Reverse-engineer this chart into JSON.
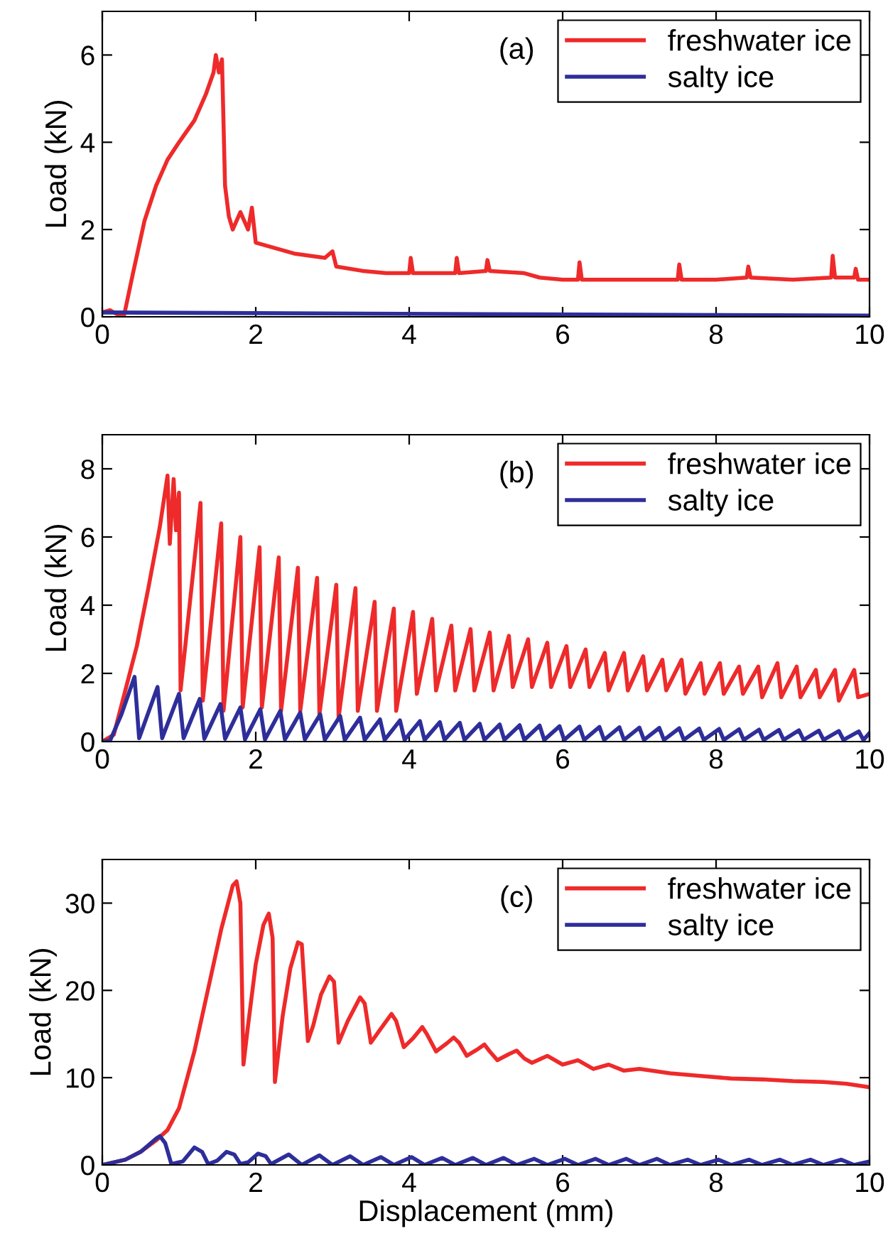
{
  "chart_data": [
    {
      "type": "line",
      "ylabel": "Load (kN)",
      "annotations": [
        "(a)"
      ],
      "xlim": [
        0,
        10
      ],
      "xticks": [
        0,
        2,
        4,
        6,
        8,
        10
      ],
      "ylim": [
        0,
        7
      ],
      "yticks": [
        0,
        2,
        4,
        6
      ],
      "legend": "top right",
      "grid": false,
      "line_style": "solid",
      "marker": "none",
      "series": [
        {
          "name": "freshwater ice",
          "color": "#ee2a2a",
          "x": [
            0,
            0.1,
            0.2,
            0.28,
            0.4,
            0.55,
            0.7,
            0.85,
            1.0,
            1.2,
            1.35,
            1.45,
            1.48,
            1.52,
            1.56,
            1.6,
            1.65,
            1.7,
            1.8,
            1.9,
            1.95,
            2.0,
            2.5,
            2.7,
            2.9,
            3.0,
            3.05,
            3.4,
            3.7,
            4.0,
            4.02,
            4.05,
            4.6,
            4.62,
            4.65,
            5.0,
            5.02,
            5.05,
            5.5,
            5.7,
            6.0,
            6.2,
            6.22,
            6.25,
            7.0,
            7.5,
            7.52,
            7.55,
            8.0,
            8.4,
            8.42,
            8.45,
            9.0,
            9.5,
            9.52,
            9.55,
            9.8,
            9.82,
            9.85,
            10
          ],
          "values": [
            0.1,
            0.15,
            0.05,
            0,
            1.0,
            2.2,
            3.0,
            3.6,
            4.0,
            4.5,
            5.1,
            5.6,
            6.0,
            5.6,
            5.9,
            3.0,
            2.3,
            2.0,
            2.4,
            2.0,
            2.5,
            1.7,
            1.45,
            1.4,
            1.35,
            1.5,
            1.15,
            1.05,
            1.0,
            1.0,
            1.35,
            1.0,
            1.0,
            1.35,
            1.0,
            1.05,
            1.3,
            1.05,
            1.0,
            0.9,
            0.85,
            0.85,
            1.25,
            0.85,
            0.85,
            0.85,
            1.2,
            0.85,
            0.85,
            0.9,
            1.15,
            0.9,
            0.85,
            0.9,
            1.4,
            0.9,
            0.9,
            1.1,
            0.85,
            0.85
          ]
        },
        {
          "name": "salty ice",
          "color": "#2e2e9a",
          "x": [
            0,
            5,
            10
          ],
          "values": [
            0.1,
            0.06,
            0.03
          ]
        }
      ]
    },
    {
      "type": "line",
      "ylabel": "Load (kN)",
      "annotations": [
        "(b)"
      ],
      "xlim": [
        0,
        10
      ],
      "xticks": [
        0,
        2,
        4,
        6,
        8,
        10
      ],
      "ylim": [
        0,
        9
      ],
      "yticks": [
        0,
        2,
        4,
        6,
        8
      ],
      "legend": "top right",
      "grid": false,
      "line_style": "solid",
      "marker": "none",
      "series": [
        {
          "name": "freshwater ice",
          "color": "#ee2a2a",
          "x": [
            0,
            0.15,
            0.3,
            0.45,
            0.6,
            0.75,
            0.85,
            0.88,
            0.93,
            0.96,
            1.0,
            1.02,
            1.28,
            1.31,
            1.55,
            1.58,
            1.8,
            1.83,
            2.05,
            2.08,
            2.3,
            2.33,
            2.55,
            2.58,
            2.8,
            2.83,
            3.05,
            3.08,
            3.3,
            3.33,
            3.55,
            3.58,
            3.8,
            3.83,
            4.05,
            4.1,
            4.3,
            4.35,
            4.55,
            4.6,
            4.8,
            4.85,
            5.05,
            5.1,
            5.3,
            5.35,
            5.55,
            5.6,
            5.8,
            5.85,
            6.05,
            6.1,
            6.3,
            6.35,
            6.55,
            6.6,
            6.8,
            6.85,
            7.05,
            7.1,
            7.3,
            7.35,
            7.55,
            7.6,
            7.8,
            7.85,
            8.05,
            8.1,
            8.3,
            8.35,
            8.55,
            8.6,
            8.8,
            8.85,
            9.05,
            9.1,
            9.3,
            9.35,
            9.55,
            9.6,
            9.8,
            9.85,
            10
          ],
          "values": [
            0,
            0.2,
            1.5,
            2.8,
            4.5,
            6.3,
            7.8,
            5.8,
            7.7,
            6.2,
            7.3,
            1.5,
            7.0,
            1.2,
            6.4,
            0.9,
            6.0,
            1.0,
            5.7,
            1.0,
            5.4,
            0.9,
            5.1,
            0.9,
            4.8,
            0.8,
            4.6,
            0.7,
            4.5,
            0.9,
            4.1,
            0.9,
            3.9,
            0.9,
            3.8,
            1.4,
            3.6,
            1.5,
            3.4,
            1.5,
            3.3,
            1.5,
            3.2,
            1.5,
            3.1,
            1.6,
            3.0,
            1.6,
            2.9,
            1.6,
            2.8,
            1.6,
            2.7,
            1.6,
            2.6,
            1.5,
            2.6,
            1.5,
            2.5,
            1.5,
            2.4,
            1.5,
            2.4,
            1.4,
            2.3,
            1.4,
            2.3,
            1.4,
            2.2,
            1.4,
            2.2,
            1.3,
            2.3,
            1.3,
            2.2,
            1.3,
            2.1,
            1.3,
            2.1,
            1.2,
            2.1,
            1.3,
            1.4
          ]
        },
        {
          "name": "salty ice",
          "color": "#2e2e9a",
          "x": [
            0,
            0.1,
            0.25,
            0.42,
            0.48,
            0.72,
            0.78,
            1.0,
            1.06,
            1.27,
            1.33,
            1.54,
            1.6,
            1.8,
            1.86,
            2.06,
            2.12,
            2.32,
            2.38,
            2.58,
            2.64,
            2.84,
            2.9,
            3.1,
            3.16,
            3.36,
            3.42,
            3.62,
            3.68,
            3.88,
            3.94,
            4.14,
            4.2,
            4.4,
            4.46,
            4.66,
            4.72,
            4.92,
            4.98,
            5.18,
            5.24,
            5.44,
            5.5,
            5.7,
            5.76,
            5.96,
            6.02,
            6.22,
            6.28,
            6.48,
            6.54,
            6.74,
            6.8,
            7.0,
            7.06,
            7.26,
            7.32,
            7.52,
            7.58,
            7.78,
            7.84,
            8.04,
            8.1,
            8.3,
            8.36,
            8.56,
            8.62,
            8.82,
            8.88,
            9.08,
            9.14,
            9.34,
            9.4,
            9.6,
            9.66,
            9.86,
            9.92,
            10
          ],
          "values": [
            0,
            0.02,
            0.8,
            1.9,
            0.1,
            1.6,
            0.1,
            1.4,
            0.1,
            1.25,
            0.08,
            1.1,
            0.08,
            1.0,
            0.06,
            0.95,
            0.06,
            0.9,
            0.06,
            0.85,
            0.06,
            0.8,
            0.05,
            0.75,
            0.05,
            0.7,
            0.05,
            0.65,
            0.05,
            0.62,
            0.05,
            0.6,
            0.05,
            0.57,
            0.05,
            0.55,
            0.05,
            0.52,
            0.05,
            0.5,
            0.05,
            0.48,
            0.05,
            0.47,
            0.05,
            0.45,
            0.05,
            0.44,
            0.05,
            0.43,
            0.05,
            0.42,
            0.05,
            0.41,
            0.05,
            0.4,
            0.05,
            0.39,
            0.05,
            0.38,
            0.05,
            0.37,
            0.05,
            0.36,
            0.05,
            0.35,
            0.05,
            0.34,
            0.05,
            0.33,
            0.05,
            0.32,
            0.05,
            0.31,
            0.05,
            0.3,
            0.05,
            0.25
          ]
        }
      ]
    },
    {
      "type": "line",
      "xlabel": "Displacement (mm)",
      "ylabel": "Load (kN)",
      "annotations": [
        "(c)"
      ],
      "xlim": [
        0,
        10
      ],
      "xticks": [
        0,
        2,
        4,
        6,
        8,
        10
      ],
      "ylim": [
        0,
        35
      ],
      "yticks": [
        0,
        10,
        20,
        30
      ],
      "legend": "top right",
      "grid": false,
      "line_style": "solid",
      "marker": "none",
      "series": [
        {
          "name": "freshwater ice",
          "color": "#ee2a2a",
          "x": [
            0,
            0.3,
            0.5,
            0.7,
            0.85,
            1.0,
            1.2,
            1.4,
            1.55,
            1.7,
            1.75,
            1.8,
            1.84,
            1.9,
            2.0,
            2.1,
            2.17,
            2.22,
            2.25,
            2.35,
            2.45,
            2.55,
            2.6,
            2.68,
            2.75,
            2.85,
            2.96,
            3.02,
            3.08,
            3.2,
            3.36,
            3.42,
            3.5,
            3.62,
            3.77,
            3.83,
            3.93,
            4.05,
            4.17,
            4.23,
            4.35,
            4.5,
            4.58,
            4.65,
            4.75,
            4.9,
            4.98,
            5.05,
            5.15,
            5.3,
            5.4,
            5.5,
            5.6,
            5.8,
            6.0,
            6.2,
            6.4,
            6.6,
            6.8,
            7.0,
            7.4,
            7.8,
            8.2,
            8.6,
            9.0,
            9.4,
            9.7,
            10
          ],
          "values": [
            0,
            0.6,
            1.5,
            2.8,
            4.0,
            6.5,
            13,
            21,
            27,
            32,
            32.5,
            30,
            11.5,
            16,
            23,
            27.5,
            28.8,
            26,
            9.5,
            17,
            22.5,
            25.5,
            25.3,
            14.2,
            16,
            19.5,
            21.6,
            21,
            14,
            16.5,
            19.2,
            18.5,
            14,
            15.5,
            17.3,
            16.5,
            13.5,
            14.5,
            15.8,
            15,
            13,
            14,
            14.6,
            14,
            12.5,
            13.3,
            13.8,
            13,
            12,
            12.7,
            13.1,
            12.2,
            11.7,
            12.5,
            11.5,
            12.0,
            11.0,
            11.5,
            10.8,
            11.0,
            10.5,
            10.2,
            9.9,
            9.8,
            9.6,
            9.5,
            9.3,
            8.9
          ]
        },
        {
          "name": "salty ice",
          "color": "#2e2e9a",
          "x": [
            0,
            0.3,
            0.5,
            0.7,
            0.75,
            0.82,
            0.9,
            1.05,
            1.2,
            1.3,
            1.38,
            1.5,
            1.62,
            1.72,
            1.8,
            1.9,
            2.03,
            2.13,
            2.2,
            2.43,
            2.6,
            2.83,
            3.0,
            3.23,
            3.4,
            3.63,
            3.8,
            4.03,
            4.2,
            4.43,
            4.6,
            4.83,
            5.0,
            5.23,
            5.4,
            5.63,
            5.8,
            6.03,
            6.2,
            6.43,
            6.6,
            6.83,
            7.0,
            7.23,
            7.4,
            7.63,
            7.8,
            8.03,
            8.2,
            8.43,
            8.6,
            8.83,
            9.0,
            9.23,
            9.4,
            9.63,
            9.8,
            10
          ],
          "values": [
            0,
            0.6,
            1.5,
            3.0,
            3.3,
            2.5,
            0.1,
            0.4,
            2.0,
            1.5,
            0.1,
            0.5,
            1.5,
            1.2,
            0.1,
            0.3,
            1.3,
            1.0,
            0.1,
            1.2,
            0,
            1.1,
            0,
            1.0,
            0,
            0.9,
            0,
            0.9,
            0,
            0.8,
            0,
            0.8,
            0,
            0.8,
            0,
            0.7,
            0,
            0.7,
            0,
            0.7,
            0,
            0.7,
            0,
            0.7,
            0,
            0.6,
            0,
            0.6,
            0,
            0.6,
            0,
            0.6,
            0,
            0.6,
            0,
            0.6,
            0,
            0.4
          ]
        }
      ]
    }
  ]
}
